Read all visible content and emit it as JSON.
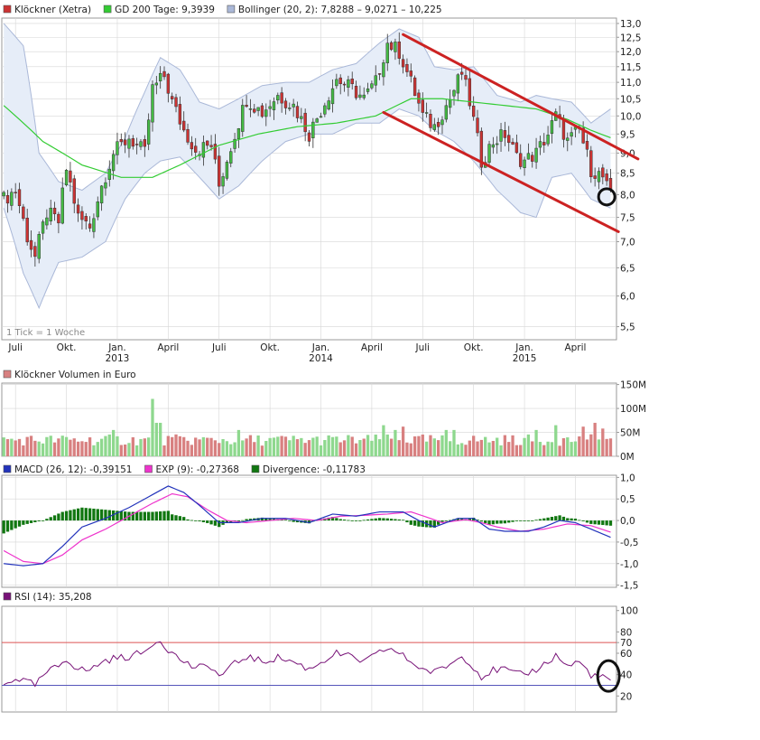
{
  "colors": {
    "grid": "#d6d6d6",
    "frame": "#999999",
    "text": "#222222",
    "up": "#44bb44",
    "down": "#cc3333",
    "ma200": "#33cc33",
    "bollinger_fill": "#e6edf8",
    "bollinger_line": "#aab8d8",
    "trend": "#cc2222",
    "circle": "#111111",
    "vol_up": "#8ed88e",
    "vol_down": "#d88080",
    "macd": "#2233bb",
    "signal": "#ee33cc",
    "divergence": "#117711",
    "rsi": "#771177",
    "rsi70": "#dd5555",
    "rsi30": "#5555bb"
  },
  "chart_data": [
    {
      "type": "candlestick",
      "id": "price",
      "legend": [
        {
          "label": "Klöckner (Xetra)",
          "swatch": "#cc3333",
          "icon": "square-legend-icon"
        },
        {
          "label": "GD 200 Tage: 9,3939",
          "swatch": "#33cc33",
          "icon": "square-legend-icon"
        },
        {
          "label": "Bollinger (20, 2): 7,8288 – 9,0271 – 10,225",
          "swatch": "#aab8d8",
          "icon": "square-legend-icon"
        }
      ],
      "note": "1 Tick = 1 Woche",
      "y_scale": "log",
      "ylim": [
        5.3,
        13.2
      ],
      "y_ticks": [
        {
          "v": 5.5,
          "label": "5,5"
        },
        {
          "v": 6.0,
          "label": "6,0"
        },
        {
          "v": 6.5,
          "label": "6,5"
        },
        {
          "v": 7.0,
          "label": "7,0"
        },
        {
          "v": 7.5,
          "label": "7,5"
        },
        {
          "v": 8.0,
          "label": "8,0"
        },
        {
          "v": 8.5,
          "label": "8,5"
        },
        {
          "v": 9.0,
          "label": "9,0"
        },
        {
          "v": 9.5,
          "label": "9,5"
        },
        {
          "v": 10.0,
          "label": "10,0"
        },
        {
          "v": 10.5,
          "label": "10,5"
        },
        {
          "v": 11.0,
          "label": "11,0"
        },
        {
          "v": 11.5,
          "label": "11,5"
        },
        {
          "v": 12.0,
          "label": "12,0"
        },
        {
          "v": 12.5,
          "label": "12,5"
        },
        {
          "v": 13.0,
          "label": "13,0"
        }
      ],
      "x_ticks": [
        {
          "i": 3,
          "label": "Juli",
          "year": ""
        },
        {
          "i": 16,
          "label": "Okt.",
          "year": ""
        },
        {
          "i": 29,
          "label": "Jan.",
          "year": "2013"
        },
        {
          "i": 42,
          "label": "April",
          "year": ""
        },
        {
          "i": 55,
          "label": "Juli",
          "year": ""
        },
        {
          "i": 68,
          "label": "Okt.",
          "year": ""
        },
        {
          "i": 81,
          "label": "Jan.",
          "year": "2014"
        },
        {
          "i": 94,
          "label": "April",
          "year": ""
        },
        {
          "i": 107,
          "label": "Juli",
          "year": ""
        },
        {
          "i": 120,
          "label": "Okt.",
          "year": ""
        },
        {
          "i": 133,
          "label": "Jan.",
          "year": "2015"
        },
        {
          "i": 146,
          "label": "April",
          "year": ""
        }
      ],
      "n_bars": 156,
      "close_anchors": [
        [
          0,
          7.9
        ],
        [
          3,
          8.1
        ],
        [
          6,
          7.1
        ],
        [
          8,
          6.7
        ],
        [
          11,
          7.6
        ],
        [
          14,
          7.4
        ],
        [
          16,
          8.6
        ],
        [
          19,
          7.5
        ],
        [
          22,
          7.3
        ],
        [
          25,
          8.2
        ],
        [
          28,
          9.0
        ],
        [
          32,
          9.4
        ],
        [
          36,
          9.0
        ],
        [
          38,
          10.8
        ],
        [
          41,
          11.2
        ],
        [
          43,
          10.4
        ],
        [
          46,
          9.6
        ],
        [
          49,
          9.1
        ],
        [
          53,
          9.2
        ],
        [
          55,
          8.2
        ],
        [
          59,
          9.5
        ],
        [
          62,
          10.5
        ],
        [
          66,
          10.1
        ],
        [
          70,
          10.6
        ],
        [
          74,
          10.3
        ],
        [
          78,
          9.5
        ],
        [
          82,
          10.4
        ],
        [
          85,
          11.1
        ],
        [
          89,
          10.8
        ],
        [
          92,
          10.5
        ],
        [
          95,
          11.0
        ],
        [
          98,
          12.3
        ],
        [
          101,
          12.0
        ],
        [
          104,
          11.0
        ],
        [
          107,
          10.0
        ],
        [
          110,
          9.7
        ],
        [
          114,
          10.5
        ],
        [
          117,
          11.3
        ],
        [
          119,
          10.4
        ],
        [
          122,
          8.8
        ],
        [
          125,
          9.3
        ],
        [
          128,
          9.5
        ],
        [
          131,
          8.9
        ],
        [
          133,
          8.8
        ],
        [
          136,
          9.0
        ],
        [
          139,
          9.5
        ],
        [
          141,
          10.0
        ],
        [
          144,
          9.3
        ],
        [
          147,
          9.6
        ],
        [
          150,
          8.6
        ],
        [
          153,
          8.4
        ],
        [
          155,
          7.95
        ]
      ],
      "ma200_anchors": [
        [
          0,
          10.3
        ],
        [
          10,
          9.3
        ],
        [
          20,
          8.7
        ],
        [
          30,
          8.4
        ],
        [
          38,
          8.4
        ],
        [
          45,
          8.7
        ],
        [
          55,
          9.2
        ],
        [
          65,
          9.5
        ],
        [
          75,
          9.7
        ],
        [
          85,
          9.8
        ],
        [
          95,
          10.0
        ],
        [
          104,
          10.5
        ],
        [
          112,
          10.5
        ],
        [
          120,
          10.4
        ],
        [
          128,
          10.3
        ],
        [
          136,
          10.2
        ],
        [
          144,
          9.9
        ],
        [
          150,
          9.6
        ],
        [
          155,
          9.4
        ]
      ],
      "bb_anchors": [
        [
          0,
          13.0,
          7.7
        ],
        [
          5,
          12.2,
          6.4
        ],
        [
          9,
          9.0,
          5.8
        ],
        [
          14,
          8.3,
          6.6
        ],
        [
          20,
          8.1,
          6.7
        ],
        [
          26,
          8.5,
          7.0
        ],
        [
          31,
          9.4,
          7.9
        ],
        [
          36,
          10.7,
          8.5
        ],
        [
          40,
          11.8,
          8.8
        ],
        [
          45,
          11.4,
          8.9
        ],
        [
          50,
          10.4,
          8.4
        ],
        [
          55,
          10.2,
          7.9
        ],
        [
          60,
          10.5,
          8.2
        ],
        [
          66,
          10.9,
          8.8
        ],
        [
          72,
          11.0,
          9.3
        ],
        [
          78,
          11.0,
          9.5
        ],
        [
          84,
          11.4,
          9.5
        ],
        [
          90,
          11.6,
          9.8
        ],
        [
          96,
          12.3,
          9.8
        ],
        [
          101,
          12.8,
          10.2
        ],
        [
          106,
          12.5,
          10.0
        ],
        [
          110,
          11.5,
          9.6
        ],
        [
          115,
          11.4,
          9.3
        ],
        [
          120,
          11.5,
          8.8
        ],
        [
          126,
          10.6,
          8.1
        ],
        [
          132,
          10.4,
          7.6
        ],
        [
          136,
          10.6,
          7.5
        ],
        [
          140,
          10.5,
          8.4
        ],
        [
          145,
          10.4,
          8.5
        ],
        [
          150,
          9.8,
          7.9
        ],
        [
          155,
          10.2,
          7.7
        ]
      ],
      "trend_lines": [
        {
          "from": [
            102,
            12.6
          ],
          "to": [
            162,
            8.85
          ]
        },
        {
          "from": [
            97,
            10.1
          ],
          "to": [
            157,
            7.2
          ]
        }
      ],
      "highlight": {
        "i": 154,
        "v": 7.95
      }
    },
    {
      "type": "bar",
      "id": "volume",
      "legend": [
        {
          "label": "Klöckner Volumen in Euro",
          "swatch": "#d88080",
          "icon": "square-legend-icon"
        }
      ],
      "ylim": [
        0,
        150
      ],
      "y_ticks": [
        {
          "v": 0,
          "label": "0M"
        },
        {
          "v": 50,
          "label": "50M"
        },
        {
          "v": 100,
          "label": "100M"
        },
        {
          "v": 150,
          "label": "150M"
        }
      ],
      "base": 40,
      "spikes": [
        [
          38,
          120
        ],
        [
          39,
          70
        ],
        [
          40,
          70
        ],
        [
          28,
          55
        ],
        [
          60,
          55
        ],
        [
          97,
          65
        ],
        [
          100,
          55
        ],
        [
          102,
          62
        ],
        [
          113,
          55
        ],
        [
          115,
          55
        ],
        [
          136,
          55
        ],
        [
          141,
          65
        ],
        [
          148,
          62
        ],
        [
          151,
          70
        ],
        [
          153,
          58
        ]
      ]
    },
    {
      "type": "line",
      "id": "macd",
      "legend": [
        {
          "label": "MACD (26, 12): -0,39151",
          "swatch": "#2233bb",
          "icon": "square-legend-icon"
        },
        {
          "label": "EXP (9): -0,27368",
          "swatch": "#ee33cc",
          "icon": "square-legend-icon"
        },
        {
          "label": "Divergence: -0,11783",
          "swatch": "#117711",
          "icon": "square-legend-icon"
        }
      ],
      "ylim": [
        -1.5,
        1.0
      ],
      "y_ticks": [
        {
          "v": 1.0,
          "label": "1,0"
        },
        {
          "v": 0.5,
          "label": "0,5"
        },
        {
          "v": 0.0,
          "label": "0,0"
        },
        {
          "v": -0.5,
          "label": "-0,5"
        },
        {
          "v": -1.0,
          "label": "-1,0"
        },
        {
          "v": -1.5,
          "label": "-1,5"
        }
      ],
      "macd_anchors": [
        [
          0,
          -1.0
        ],
        [
          5,
          -1.05
        ],
        [
          10,
          -1.0
        ],
        [
          15,
          -0.6
        ],
        [
          20,
          -0.15
        ],
        [
          26,
          0.05
        ],
        [
          32,
          0.3
        ],
        [
          38,
          0.6
        ],
        [
          42,
          0.8
        ],
        [
          46,
          0.65
        ],
        [
          50,
          0.35
        ],
        [
          55,
          -0.05
        ],
        [
          60,
          -0.05
        ],
        [
          66,
          0.05
        ],
        [
          72,
          0.05
        ],
        [
          78,
          -0.05
        ],
        [
          84,
          0.15
        ],
        [
          90,
          0.1
        ],
        [
          96,
          0.2
        ],
        [
          102,
          0.2
        ],
        [
          106,
          0.0
        ],
        [
          110,
          -0.15
        ],
        [
          116,
          0.05
        ],
        [
          120,
          0.05
        ],
        [
          124,
          -0.2
        ],
        [
          128,
          -0.25
        ],
        [
          134,
          -0.25
        ],
        [
          138,
          -0.15
        ],
        [
          142,
          0.0
        ],
        [
          146,
          -0.05
        ],
        [
          150,
          -0.2
        ],
        [
          155,
          -0.39
        ]
      ],
      "signal_anchors": [
        [
          0,
          -0.7
        ],
        [
          5,
          -0.95
        ],
        [
          10,
          -1.0
        ],
        [
          15,
          -0.8
        ],
        [
          20,
          -0.45
        ],
        [
          26,
          -0.2
        ],
        [
          32,
          0.1
        ],
        [
          38,
          0.4
        ],
        [
          43,
          0.62
        ],
        [
          47,
          0.55
        ],
        [
          52,
          0.25
        ],
        [
          57,
          0.0
        ],
        [
          62,
          -0.05
        ],
        [
          68,
          0.0
        ],
        [
          74,
          0.05
        ],
        [
          80,
          0.0
        ],
        [
          86,
          0.1
        ],
        [
          92,
          0.12
        ],
        [
          98,
          0.15
        ],
        [
          104,
          0.2
        ],
        [
          108,
          0.08
        ],
        [
          112,
          -0.05
        ],
        [
          118,
          0.02
        ],
        [
          122,
          -0.05
        ],
        [
          126,
          -0.15
        ],
        [
          132,
          -0.25
        ],
        [
          138,
          -0.2
        ],
        [
          144,
          -0.08
        ],
        [
          150,
          -0.12
        ],
        [
          155,
          -0.27
        ]
      ]
    },
    {
      "type": "line",
      "id": "rsi",
      "legend": [
        {
          "label": "RSI (14): 35,208",
          "swatch": "#771177",
          "icon": "square-legend-icon"
        }
      ],
      "ylim": [
        0,
        100
      ],
      "y_ticks": [
        {
          "v": 100,
          "label": "100"
        },
        {
          "v": 80,
          "label": "80"
        },
        {
          "v": 70,
          "label": "70"
        },
        {
          "v": 60,
          "label": "60"
        },
        {
          "v": 40,
          "label": "40"
        },
        {
          "v": 20,
          "label": "20"
        }
      ],
      "levels": [
        70,
        30
      ],
      "rsi_anchors": [
        [
          0,
          30
        ],
        [
          3,
          37
        ],
        [
          6,
          33
        ],
        [
          8,
          30
        ],
        [
          11,
          42
        ],
        [
          14,
          48
        ],
        [
          16,
          55
        ],
        [
          19,
          45
        ],
        [
          22,
          44
        ],
        [
          25,
          52
        ],
        [
          28,
          55
        ],
        [
          32,
          57
        ],
        [
          36,
          61
        ],
        [
          38,
          70
        ],
        [
          40,
          72
        ],
        [
          43,
          60
        ],
        [
          46,
          52
        ],
        [
          49,
          46
        ],
        [
          53,
          48
        ],
        [
          55,
          38
        ],
        [
          59,
          50
        ],
        [
          62,
          57
        ],
        [
          66,
          52
        ],
        [
          70,
          56
        ],
        [
          74,
          52
        ],
        [
          78,
          45
        ],
        [
          82,
          54
        ],
        [
          85,
          60
        ],
        [
          89,
          56
        ],
        [
          92,
          52
        ],
        [
          95,
          58
        ],
        [
          98,
          65
        ],
        [
          101,
          60
        ],
        [
          104,
          52
        ],
        [
          107,
          45
        ],
        [
          110,
          42
        ],
        [
          114,
          50
        ],
        [
          117,
          57
        ],
        [
          119,
          52
        ],
        [
          122,
          38
        ],
        [
          125,
          44
        ],
        [
          128,
          45
        ],
        [
          131,
          40
        ],
        [
          133,
          40
        ],
        [
          136,
          45
        ],
        [
          139,
          52
        ],
        [
          141,
          58
        ],
        [
          144,
          48
        ],
        [
          147,
          52
        ],
        [
          150,
          40
        ],
        [
          153,
          37
        ],
        [
          155,
          35
        ]
      ],
      "highlight": {
        "i": 154,
        "v": 37
      }
    }
  ]
}
